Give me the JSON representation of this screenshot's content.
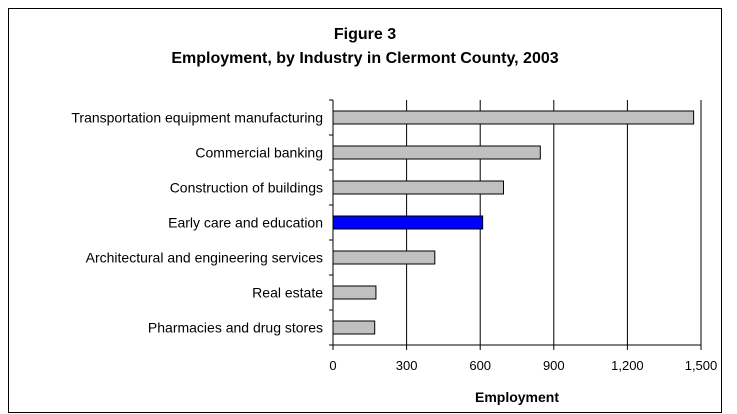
{
  "chart_data": {
    "type": "bar",
    "orientation": "horizontal",
    "title": "Figure 3",
    "subtitle": "Employment, by Industry in Clermont County, 2003",
    "xlabel": "Employment",
    "ylabel": "",
    "categories": [
      "Transportation equipment manufacturing",
      "Commercial banking",
      "Construction of buildings",
      "Early care and education",
      "Architectural and engineering services",
      "Real estate",
      "Pharmacies and drug stores"
    ],
    "values": [
      1470,
      845,
      695,
      610,
      415,
      175,
      170
    ],
    "xlim": [
      0,
      1500
    ],
    "ticks": [
      0,
      300,
      600,
      900,
      1200,
      1500
    ],
    "tick_labels": [
      "0",
      "300",
      "600",
      "900",
      "1,200",
      "1,500"
    ],
    "grid": "vertical",
    "legend": "none",
    "colors": {
      "default_bar": "#c0c0c0",
      "highlight_bar": "#0000ff",
      "bar_outline": "#000000",
      "gridline": "#000000"
    },
    "highlight_category": "Early care and education"
  }
}
